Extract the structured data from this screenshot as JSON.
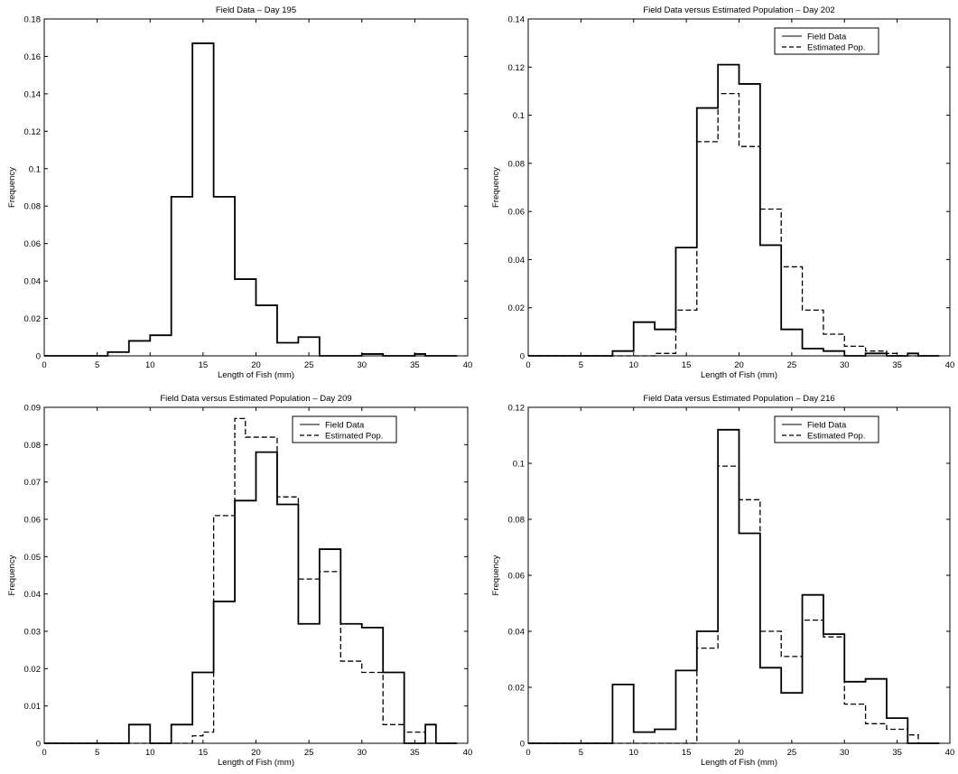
{
  "chart_data": [
    {
      "type": "histogram",
      "title": "Field Data – Day 195",
      "xlabel": "Length of Fish (mm)",
      "ylabel": "Frequency",
      "xlim": [
        0,
        40
      ],
      "ylim": [
        0,
        0.18
      ],
      "xticks": [
        0,
        5,
        10,
        15,
        20,
        25,
        30,
        35,
        40
      ],
      "yticks": [
        0,
        0.02,
        0.04,
        0.06,
        0.08,
        0.1,
        0.12,
        0.14,
        0.16,
        0.18
      ],
      "legend": [],
      "series": [
        {
          "style": "solid",
          "steps": [
            [
              0,
              0
            ],
            [
              6,
              0.002
            ],
            [
              8,
              0.008
            ],
            [
              10,
              0.011
            ],
            [
              12,
              0.085
            ],
            [
              14,
              0.167
            ],
            [
              16,
              0.085
            ],
            [
              18,
              0.041
            ],
            [
              20,
              0.027
            ],
            [
              22,
              0.007
            ],
            [
              24,
              0.01
            ],
            [
              26,
              0
            ],
            [
              30,
              0.001
            ],
            [
              32,
              0
            ],
            [
              35,
              0.001
            ],
            [
              36,
              0
            ],
            [
              39,
              0
            ]
          ]
        }
      ]
    },
    {
      "type": "histogram",
      "title": "Field Data versus Estimated Population – Day 202",
      "xlabel": "Length of Fish (mm)",
      "ylabel": "Frequency",
      "xlim": [
        0,
        40
      ],
      "ylim": [
        0,
        0.14
      ],
      "xticks": [
        0,
        5,
        10,
        15,
        20,
        25,
        30,
        35,
        40
      ],
      "yticks": [
        0,
        0.02,
        0.04,
        0.06,
        0.08,
        0.1,
        0.12,
        0.14
      ],
      "legend": [
        "Field Data",
        "Estimated Pop."
      ],
      "legend_position": "top-right",
      "series": [
        {
          "name": "Field Data",
          "style": "solid",
          "steps": [
            [
              0,
              0
            ],
            [
              8,
              0.002
            ],
            [
              10,
              0.014
            ],
            [
              12,
              0.011
            ],
            [
              14,
              0.045
            ],
            [
              16,
              0.103
            ],
            [
              18,
              0.121
            ],
            [
              20,
              0.113
            ],
            [
              22,
              0.046
            ],
            [
              24,
              0.011
            ],
            [
              26,
              0.003
            ],
            [
              28,
              0.002
            ],
            [
              30,
              0
            ],
            [
              32,
              0.001
            ],
            [
              34,
              0
            ],
            [
              36,
              0.001
            ],
            [
              37,
              0
            ],
            [
              39,
              0
            ]
          ]
        },
        {
          "name": "Estimated Pop.",
          "style": "dashed",
          "steps": [
            [
              0,
              0
            ],
            [
              10,
              0
            ],
            [
              12,
              0.001
            ],
            [
              14,
              0.019
            ],
            [
              16,
              0.089
            ],
            [
              18,
              0.109
            ],
            [
              20,
              0.087
            ],
            [
              22,
              0.061
            ],
            [
              24,
              0.037
            ],
            [
              26,
              0.019
            ],
            [
              28,
              0.009
            ],
            [
              30,
              0.004
            ],
            [
              32,
              0.002
            ],
            [
              34,
              0.001
            ],
            [
              35,
              0
            ],
            [
              39,
              0
            ]
          ]
        }
      ]
    },
    {
      "type": "histogram",
      "title": "Field Data versus Estimated Population – Day 209",
      "xlabel": "Length of Fish (mm)",
      "ylabel": "Frequency",
      "xlim": [
        0,
        40
      ],
      "ylim": [
        0,
        0.09
      ],
      "xticks": [
        0,
        5,
        10,
        15,
        20,
        25,
        30,
        35,
        40
      ],
      "yticks": [
        0,
        0.01,
        0.02,
        0.03,
        0.04,
        0.05,
        0.06,
        0.07,
        0.08,
        0.09
      ],
      "legend": [
        "Field Data",
        "Estimated Pop."
      ],
      "legend_position": "top-right",
      "series": [
        {
          "name": "Field Data",
          "style": "solid",
          "steps": [
            [
              0,
              0
            ],
            [
              8,
              0.005
            ],
            [
              10,
              0
            ],
            [
              12,
              0.005
            ],
            [
              14,
              0.019
            ],
            [
              16,
              0.038
            ],
            [
              18,
              0.065
            ],
            [
              20,
              0.078
            ],
            [
              22,
              0.064
            ],
            [
              24,
              0.032
            ],
            [
              26,
              0.052
            ],
            [
              28,
              0.032
            ],
            [
              30,
              0.031
            ],
            [
              32,
              0.019
            ],
            [
              34,
              0
            ],
            [
              36,
              0.005
            ],
            [
              37,
              0
            ],
            [
              39,
              0
            ]
          ]
        },
        {
          "name": "Estimated Pop.",
          "style": "dashed",
          "steps": [
            [
              0,
              0
            ],
            [
              14,
              0.002
            ],
            [
              15,
              0.003
            ],
            [
              16,
              0.061
            ],
            [
              18,
              0.087
            ],
            [
              19,
              0.082
            ],
            [
              20,
              0.082
            ],
            [
              22,
              0.066
            ],
            [
              24,
              0.044
            ],
            [
              26,
              0.046
            ],
            [
              28,
              0.022
            ],
            [
              29,
              0.022
            ],
            [
              30,
              0.019
            ],
            [
              32,
              0.005
            ],
            [
              34,
              0.003
            ],
            [
              36,
              0
            ],
            [
              39,
              0
            ]
          ]
        }
      ]
    },
    {
      "type": "histogram",
      "title": "Field Data versus Estimated Population – Day 216",
      "xlabel": "Length of Fish (mm)",
      "ylabel": "Frequency",
      "xlim": [
        0,
        40
      ],
      "ylim": [
        0,
        0.12
      ],
      "xticks": [
        0,
        5,
        10,
        15,
        20,
        25,
        30,
        35,
        40
      ],
      "yticks": [
        0,
        0.02,
        0.04,
        0.06,
        0.08,
        0.1,
        0.12
      ],
      "legend": [
        "Field Data",
        "Estimated Pop."
      ],
      "legend_position": "top-right",
      "series": [
        {
          "name": "Field Data",
          "style": "solid",
          "steps": [
            [
              0,
              0
            ],
            [
              8,
              0.021
            ],
            [
              10,
              0.004
            ],
            [
              12,
              0.005
            ],
            [
              14,
              0.026
            ],
            [
              16,
              0.04
            ],
            [
              18,
              0.112
            ],
            [
              20,
              0.075
            ],
            [
              22,
              0.027
            ],
            [
              24,
              0.018
            ],
            [
              26,
              0.053
            ],
            [
              28,
              0.039
            ],
            [
              30,
              0.022
            ],
            [
              32,
              0.023
            ],
            [
              34,
              0.009
            ],
            [
              36,
              0
            ],
            [
              39,
              0
            ]
          ]
        },
        {
          "name": "Estimated Pop.",
          "style": "dashed",
          "steps": [
            [
              0,
              0
            ],
            [
              16,
              0.034
            ],
            [
              18,
              0.099
            ],
            [
              20,
              0.087
            ],
            [
              22,
              0.04
            ],
            [
              24,
              0.031
            ],
            [
              26,
              0.044
            ],
            [
              28,
              0.038
            ],
            [
              30,
              0.014
            ],
            [
              32,
              0.007
            ],
            [
              34,
              0.005
            ],
            [
              36,
              0.003
            ],
            [
              37,
              0
            ],
            [
              39,
              0
            ]
          ]
        }
      ]
    }
  ]
}
